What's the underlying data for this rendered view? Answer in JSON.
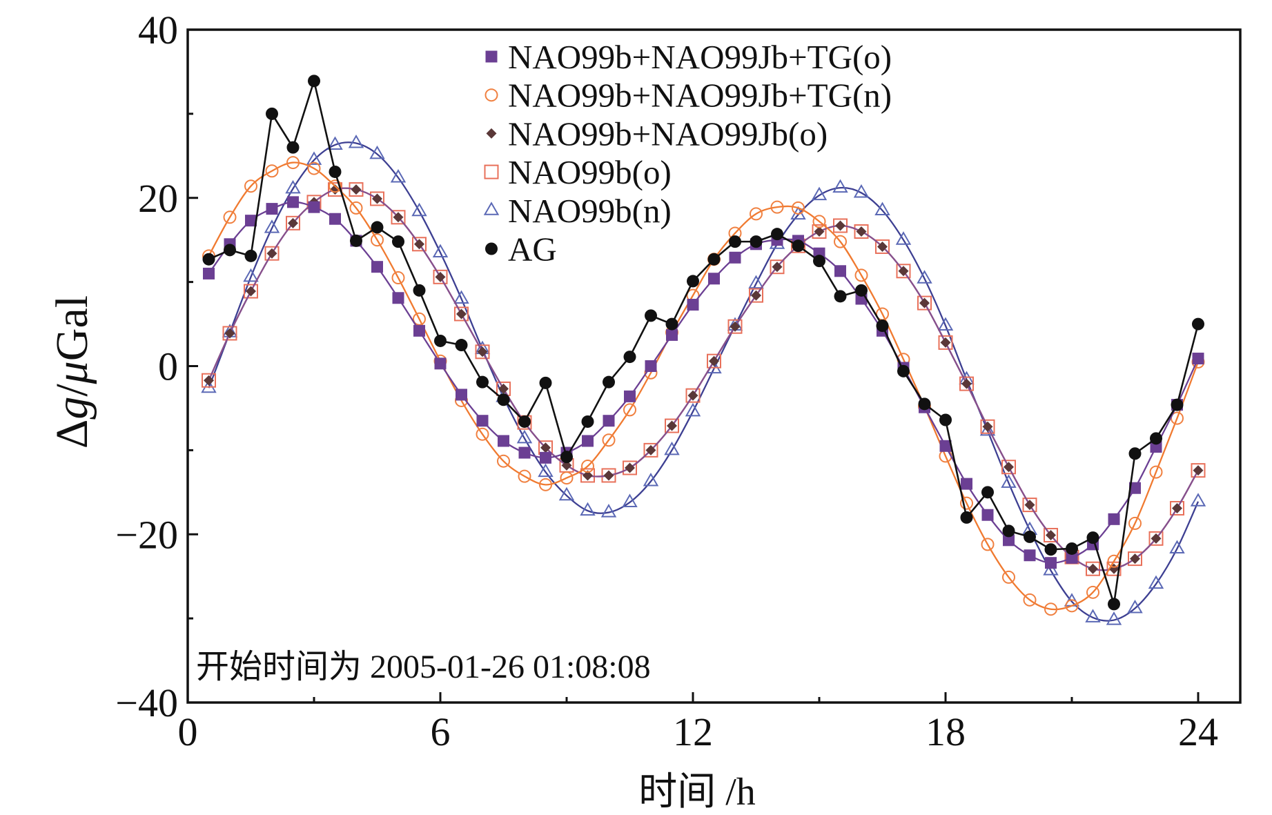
{
  "chart_data": {
    "type": "line",
    "title": "",
    "xlabel": "时间 /h",
    "ylabel": "Δg/μGal",
    "annotation": "开始时间为 2005-01-26 01:08:08",
    "xlim": [
      0,
      25
    ],
    "ylim": [
      -40,
      40
    ],
    "grid": false,
    "xticks": [
      0,
      6,
      12,
      18,
      24
    ],
    "xtick_labels": [
      "0",
      "6",
      "12",
      "18",
      "24"
    ],
    "yticks": [
      40,
      20,
      0,
      -20,
      -40
    ],
    "ytick_labels": [
      "40",
      "20",
      "0",
      "−20",
      "−40"
    ],
    "x": [
      0.5,
      1,
      1.5,
      2,
      2.5,
      3,
      3.5,
      4,
      4.5,
      5,
      5.5,
      6,
      6.5,
      7,
      7.5,
      8,
      8.5,
      9,
      9.5,
      10,
      10.5,
      11,
      11.5,
      12,
      12.5,
      13,
      13.5,
      14,
      14.5,
      15,
      15.5,
      16,
      16.5,
      17,
      17.5,
      18,
      18.5,
      19,
      19.5,
      20,
      20.5,
      21,
      21.5,
      22,
      22.5,
      23,
      23.5,
      24
    ],
    "series": [
      {
        "name": "NAO99b+NAO99Jb+TG(o)",
        "marker": "filled-square",
        "color": "#6b3f93",
        "line_color": "#6b3f93",
        "smooth": true,
        "values": [
          11.0,
          14.5,
          17.3,
          18.7,
          19.5,
          18.9,
          17.5,
          14.9,
          11.8,
          8.1,
          4.2,
          0.3,
          -3.4,
          -6.5,
          -8.9,
          -10.3,
          -10.9,
          -10.3,
          -8.9,
          -6.5,
          -3.6,
          0.0,
          3.7,
          7.3,
          10.4,
          12.9,
          14.5,
          15.0,
          14.9,
          13.4,
          11.3,
          8.0,
          4.2,
          -0.2,
          -4.9,
          -9.5,
          -14.0,
          -17.7,
          -20.7,
          -22.5,
          -23.4,
          -22.8,
          -21.2,
          -18.2,
          -14.5,
          -9.6,
          -4.6,
          0.9
        ]
      },
      {
        "name": "NAO99b+NAO99Jb+TG(n)",
        "marker": "open-circle",
        "color": "#f08040",
        "line_color": "#f07a30",
        "smooth": true,
        "values": [
          13.1,
          17.7,
          21.4,
          23.2,
          24.2,
          23.5,
          21.4,
          18.8,
          15.0,
          10.5,
          5.6,
          0.6,
          -4.1,
          -8.1,
          -11.3,
          -13.1,
          -14.1,
          -13.3,
          -11.9,
          -8.8,
          -5.2,
          -0.8,
          4.0,
          8.4,
          12.7,
          15.8,
          18.1,
          18.9,
          18.8,
          17.2,
          14.8,
          10.8,
          6.2,
          0.8,
          -4.8,
          -10.7,
          -16.3,
          -21.2,
          -25.1,
          -27.8,
          -28.9,
          -28.5,
          -26.9,
          -23.2,
          -18.7,
          -12.6,
          -6.2,
          0.5
        ]
      },
      {
        "name": "NAO99b+NAO99Jb(o)",
        "marker": "filled-diamond",
        "color": "#5a3838",
        "line_color": "#87508c",
        "smooth": true,
        "values": [
          -1.7,
          3.9,
          8.9,
          13.4,
          17.0,
          19.5,
          21.0,
          21.0,
          19.9,
          17.7,
          14.5,
          10.6,
          6.2,
          1.7,
          -2.7,
          -6.7,
          -9.7,
          -11.8,
          -13.0,
          -13.0,
          -12.1,
          -10.0,
          -7.1,
          -3.5,
          0.6,
          4.7,
          8.4,
          11.8,
          14.3,
          16.0,
          16.7,
          16.0,
          14.2,
          11.3,
          7.5,
          2.8,
          -2.1,
          -7.2,
          -12.0,
          -16.5,
          -20.1,
          -22.7,
          -24.1,
          -24.1,
          -22.9,
          -20.5,
          -16.9,
          -12.4
        ]
      },
      {
        "name": "NAO99b(o)",
        "marker": "open-square",
        "color": "#e8705a",
        "line_color": "#87508c",
        "smooth": true,
        "values": [
          -1.7,
          3.9,
          8.9,
          13.4,
          17.0,
          19.5,
          21.0,
          21.0,
          19.9,
          17.7,
          14.5,
          10.6,
          6.2,
          1.7,
          -2.7,
          -6.7,
          -9.7,
          -11.8,
          -13.0,
          -13.0,
          -12.1,
          -10.0,
          -7.1,
          -3.5,
          0.6,
          4.7,
          8.4,
          11.8,
          14.3,
          16.0,
          16.7,
          16.0,
          14.2,
          11.3,
          7.5,
          2.8,
          -2.1,
          -7.2,
          -12.0,
          -16.5,
          -20.1,
          -22.7,
          -24.1,
          -24.1,
          -22.9,
          -20.5,
          -16.9,
          -12.4
        ]
      },
      {
        "name": "NAO99b(n)",
        "marker": "open-triangle",
        "color": "#5a68b5",
        "line_color": "#3d3f92",
        "smooth": true,
        "values": [
          -2.6,
          4.0,
          10.6,
          16.4,
          21.1,
          24.5,
          26.3,
          26.5,
          25.2,
          22.4,
          18.4,
          13.5,
          8.0,
          2.0,
          -3.7,
          -8.6,
          -12.6,
          -15.4,
          -17.2,
          -17.4,
          -16.2,
          -13.7,
          -10.0,
          -5.4,
          -0.3,
          4.8,
          9.8,
          14.5,
          18.0,
          20.3,
          21.2,
          20.6,
          18.5,
          15.0,
          10.4,
          4.8,
          -1.6,
          -7.7,
          -13.9,
          -19.5,
          -24.3,
          -28.0,
          -29.9,
          -30.2,
          -28.8,
          -25.9,
          -21.7,
          -16.1
        ]
      },
      {
        "name": "AG",
        "marker": "filled-circle",
        "color": "#111111",
        "line_color": "#111111",
        "smooth": false,
        "values": [
          12.7,
          13.8,
          13.1,
          30.0,
          26.0,
          33.9,
          23.1,
          14.9,
          16.5,
          14.8,
          9.0,
          3.0,
          2.5,
          -1.9,
          -4.0,
          -6.6,
          -2.0,
          -10.8,
          -6.6,
          -1.9,
          1.1,
          6.0,
          5.0,
          10.1,
          12.7,
          14.8,
          14.8,
          15.7,
          14.3,
          12.5,
          8.3,
          9.0,
          4.8,
          -0.6,
          -4.5,
          -6.4,
          -18.0,
          -15.0,
          -19.6,
          -20.3,
          -21.8,
          -21.7,
          -20.4,
          -28.3,
          -10.4,
          -8.6,
          -4.6,
          5.0
        ]
      }
    ]
  }
}
